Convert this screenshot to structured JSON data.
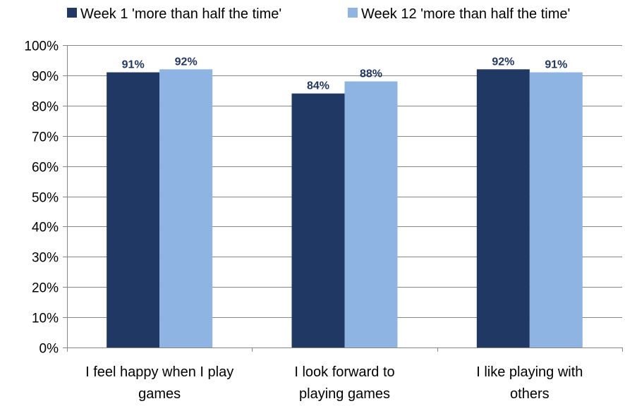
{
  "chart_data": {
    "type": "bar",
    "title": "",
    "xlabel": "",
    "ylabel": "",
    "categories": [
      [
        "I feel happy when I play",
        "games"
      ],
      [
        "I look forward to",
        "playing games"
      ],
      [
        "I like playing with",
        "others"
      ]
    ],
    "series": [
      {
        "name": "Week 1 'more than half the time'",
        "color": "#1F3864",
        "values": [
          91,
          84,
          92
        ],
        "labels": [
          "91%",
          "84%",
          "92%"
        ]
      },
      {
        "name": "Week 12 'more than half the time'",
        "color": "#8EB4E3",
        "values": [
          92,
          88,
          91
        ],
        "labels": [
          "92%",
          "88%",
          "91%"
        ]
      }
    ],
    "ylim": [
      0,
      100
    ],
    "yticks": [
      0,
      10,
      20,
      30,
      40,
      50,
      60,
      70,
      80,
      90,
      100
    ],
    "ytick_labels": [
      "0%",
      "10%",
      "20%",
      "30%",
      "40%",
      "50%",
      "60%",
      "70%",
      "80%",
      "90%",
      "100%"
    ],
    "grid": true,
    "legend_position": "top"
  }
}
